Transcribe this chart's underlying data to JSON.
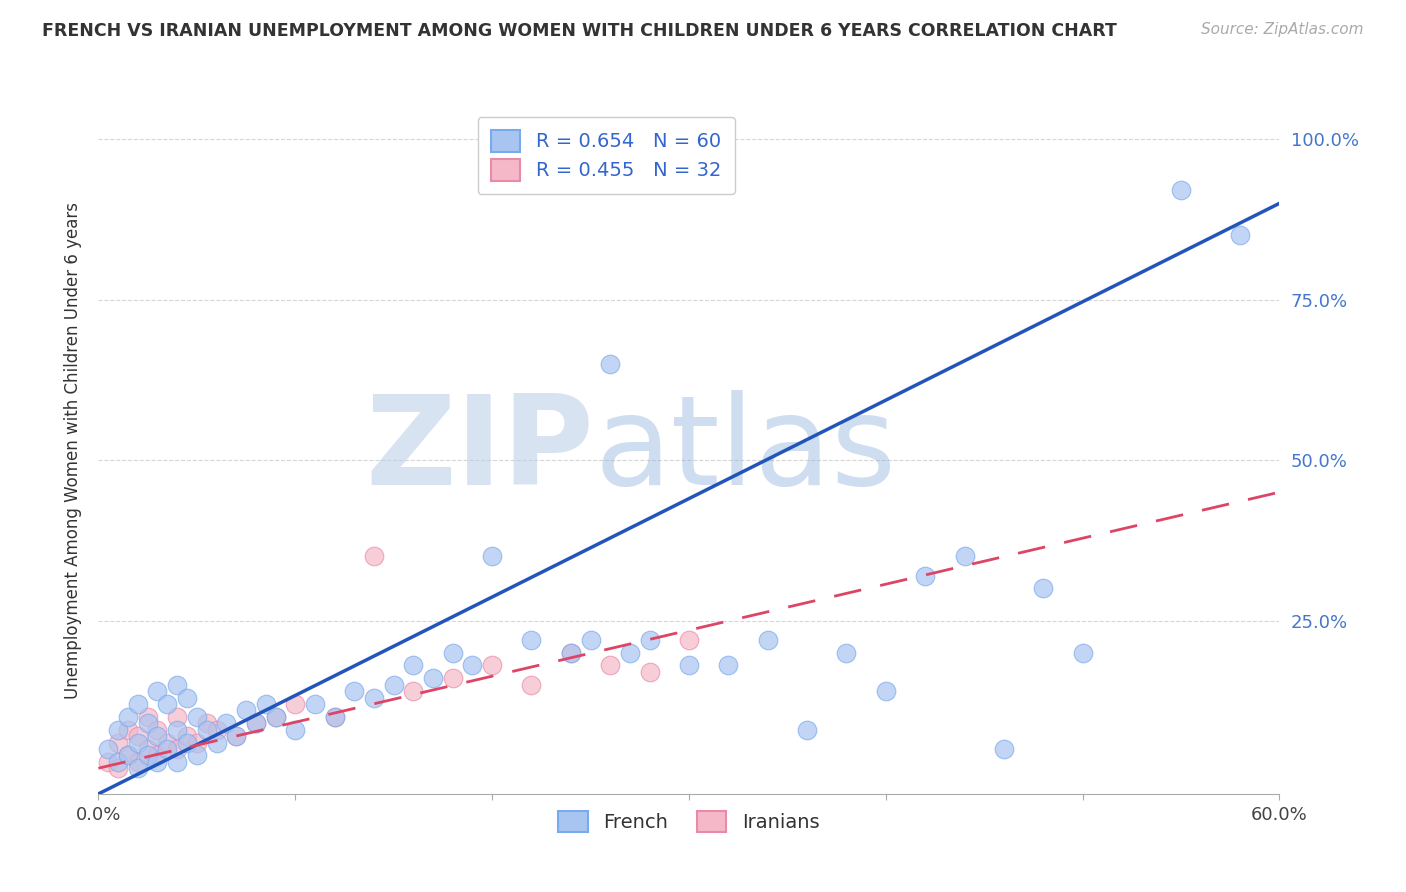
{
  "title": "FRENCH VS IRANIAN UNEMPLOYMENT AMONG WOMEN WITH CHILDREN UNDER 6 YEARS CORRELATION CHART",
  "source": "Source: ZipAtlas.com",
  "ylabel": "Unemployment Among Women with Children Under 6 years",
  "xlim": [
    0.0,
    0.6
  ],
  "ylim": [
    -0.02,
    1.05
  ],
  "french_color": "#a8c4f0",
  "french_edge_color": "#7aaaee",
  "iranian_color": "#f5b8c8",
  "iranian_edge_color": "#e88aaa",
  "french_line_color": "#2255bb",
  "iranian_line_color": "#dd4466",
  "french_R": 0.654,
  "french_N": 60,
  "iranian_R": 0.455,
  "iranian_N": 32,
  "watermark_zip": "ZIP",
  "watermark_atlas": "atlas",
  "background_color": "#ffffff",
  "grid_color": "#cccccc",
  "french_line_x0": 0.0,
  "french_line_y0": -0.02,
  "french_line_x1": 0.6,
  "french_line_y1": 0.9,
  "iranian_line_x0": 0.0,
  "iranian_line_y0": 0.02,
  "iranian_line_x1": 0.6,
  "iranian_line_y1": 0.45,
  "french_scatter_x": [
    0.005,
    0.01,
    0.01,
    0.015,
    0.015,
    0.02,
    0.02,
    0.02,
    0.025,
    0.025,
    0.03,
    0.03,
    0.03,
    0.035,
    0.035,
    0.04,
    0.04,
    0.04,
    0.045,
    0.045,
    0.05,
    0.05,
    0.055,
    0.06,
    0.065,
    0.07,
    0.075,
    0.08,
    0.085,
    0.09,
    0.1,
    0.11,
    0.12,
    0.13,
    0.14,
    0.15,
    0.16,
    0.17,
    0.18,
    0.19,
    0.2,
    0.22,
    0.24,
    0.25,
    0.26,
    0.27,
    0.28,
    0.3,
    0.32,
    0.34,
    0.36,
    0.38,
    0.4,
    0.42,
    0.44,
    0.46,
    0.48,
    0.5,
    0.55,
    0.58
  ],
  "french_scatter_y": [
    0.05,
    0.03,
    0.08,
    0.04,
    0.1,
    0.02,
    0.06,
    0.12,
    0.04,
    0.09,
    0.03,
    0.07,
    0.14,
    0.05,
    0.12,
    0.03,
    0.08,
    0.15,
    0.06,
    0.13,
    0.04,
    0.1,
    0.08,
    0.06,
    0.09,
    0.07,
    0.11,
    0.09,
    0.12,
    0.1,
    0.08,
    0.12,
    0.1,
    0.14,
    0.13,
    0.15,
    0.18,
    0.16,
    0.2,
    0.18,
    0.35,
    0.22,
    0.2,
    0.22,
    0.65,
    0.2,
    0.22,
    0.18,
    0.18,
    0.22,
    0.08,
    0.2,
    0.14,
    0.32,
    0.35,
    0.05,
    0.3,
    0.2,
    0.92,
    0.85
  ],
  "iranian_scatter_x": [
    0.005,
    0.01,
    0.01,
    0.015,
    0.015,
    0.02,
    0.02,
    0.025,
    0.025,
    0.03,
    0.03,
    0.035,
    0.04,
    0.04,
    0.045,
    0.05,
    0.055,
    0.06,
    0.07,
    0.08,
    0.09,
    0.1,
    0.12,
    0.14,
    0.16,
    0.18,
    0.2,
    0.22,
    0.24,
    0.26,
    0.28,
    0.3
  ],
  "iranian_scatter_y": [
    0.03,
    0.02,
    0.06,
    0.04,
    0.08,
    0.03,
    0.07,
    0.05,
    0.1,
    0.04,
    0.08,
    0.06,
    0.05,
    0.1,
    0.07,
    0.06,
    0.09,
    0.08,
    0.07,
    0.09,
    0.1,
    0.12,
    0.1,
    0.35,
    0.14,
    0.16,
    0.18,
    0.15,
    0.2,
    0.18,
    0.17,
    0.22
  ]
}
